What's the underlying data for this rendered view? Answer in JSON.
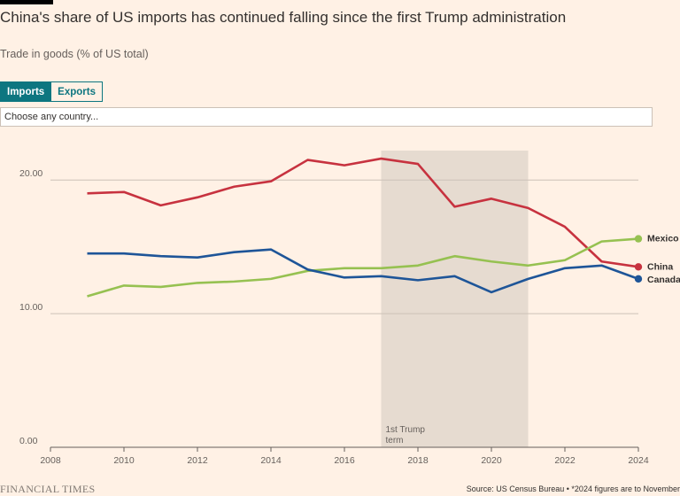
{
  "header": {
    "title": "China's share of US imports has continued falling since the first Trump administration",
    "subtitle": "Trade in goods (% of US total)"
  },
  "toggle": {
    "imports_label": "Imports",
    "exports_label": "Exports",
    "active": "Imports"
  },
  "search": {
    "placeholder": "Choose any country..."
  },
  "colors": {
    "china": "#c7323f",
    "mexico": "#96c151",
    "canada": "#1e5598",
    "shade": "#e6dbd0",
    "accent": "#0d7680"
  },
  "chart_data": {
    "type": "line",
    "title": "China's share of US imports has continued falling since the first Trump administration",
    "ylabel": "Trade in goods (% of US total)",
    "xlim": [
      2008,
      2024
    ],
    "ylim": [
      0,
      22.2
    ],
    "x_ticks": [
      2008,
      2010,
      2012,
      2014,
      2016,
      2018,
      2020,
      2022,
      2024
    ],
    "y_ticks": [
      {
        "value": 0,
        "label": "0.00"
      },
      {
        "value": 10,
        "label": "10.00"
      },
      {
        "value": 20,
        "label": "20.00"
      }
    ],
    "x": [
      2009,
      2010,
      2011,
      2012,
      2013,
      2014,
      2015,
      2016,
      2017,
      2018,
      2019,
      2020,
      2021,
      2022,
      2023,
      2024
    ],
    "series": [
      {
        "name": "China",
        "key": "china",
        "values": [
          19.0,
          19.1,
          18.1,
          18.7,
          19.5,
          19.9,
          21.5,
          21.1,
          21.6,
          21.2,
          18.0,
          18.6,
          17.9,
          16.5,
          13.9,
          13.5
        ]
      },
      {
        "name": "Mexico",
        "key": "mexico",
        "values": [
          11.3,
          12.1,
          12.0,
          12.3,
          12.4,
          12.6,
          13.2,
          13.4,
          13.4,
          13.6,
          14.3,
          13.9,
          13.6,
          14.0,
          15.4,
          15.6
        ]
      },
      {
        "name": "Canada",
        "key": "canada",
        "values": [
          14.5,
          14.5,
          14.3,
          14.2,
          14.6,
          14.8,
          13.3,
          12.7,
          12.8,
          12.5,
          12.8,
          11.6,
          12.6,
          13.4,
          13.6,
          12.6
        ]
      }
    ],
    "annotations": [
      {
        "type": "span",
        "x_start": 2017,
        "x_end": 2021,
        "line1": "1st Trump",
        "line2": "term"
      }
    ]
  },
  "footer": {
    "brand": "FINANCIAL TIMES",
    "source": "Source: US Census Bureau • *2024 figures are to November"
  }
}
